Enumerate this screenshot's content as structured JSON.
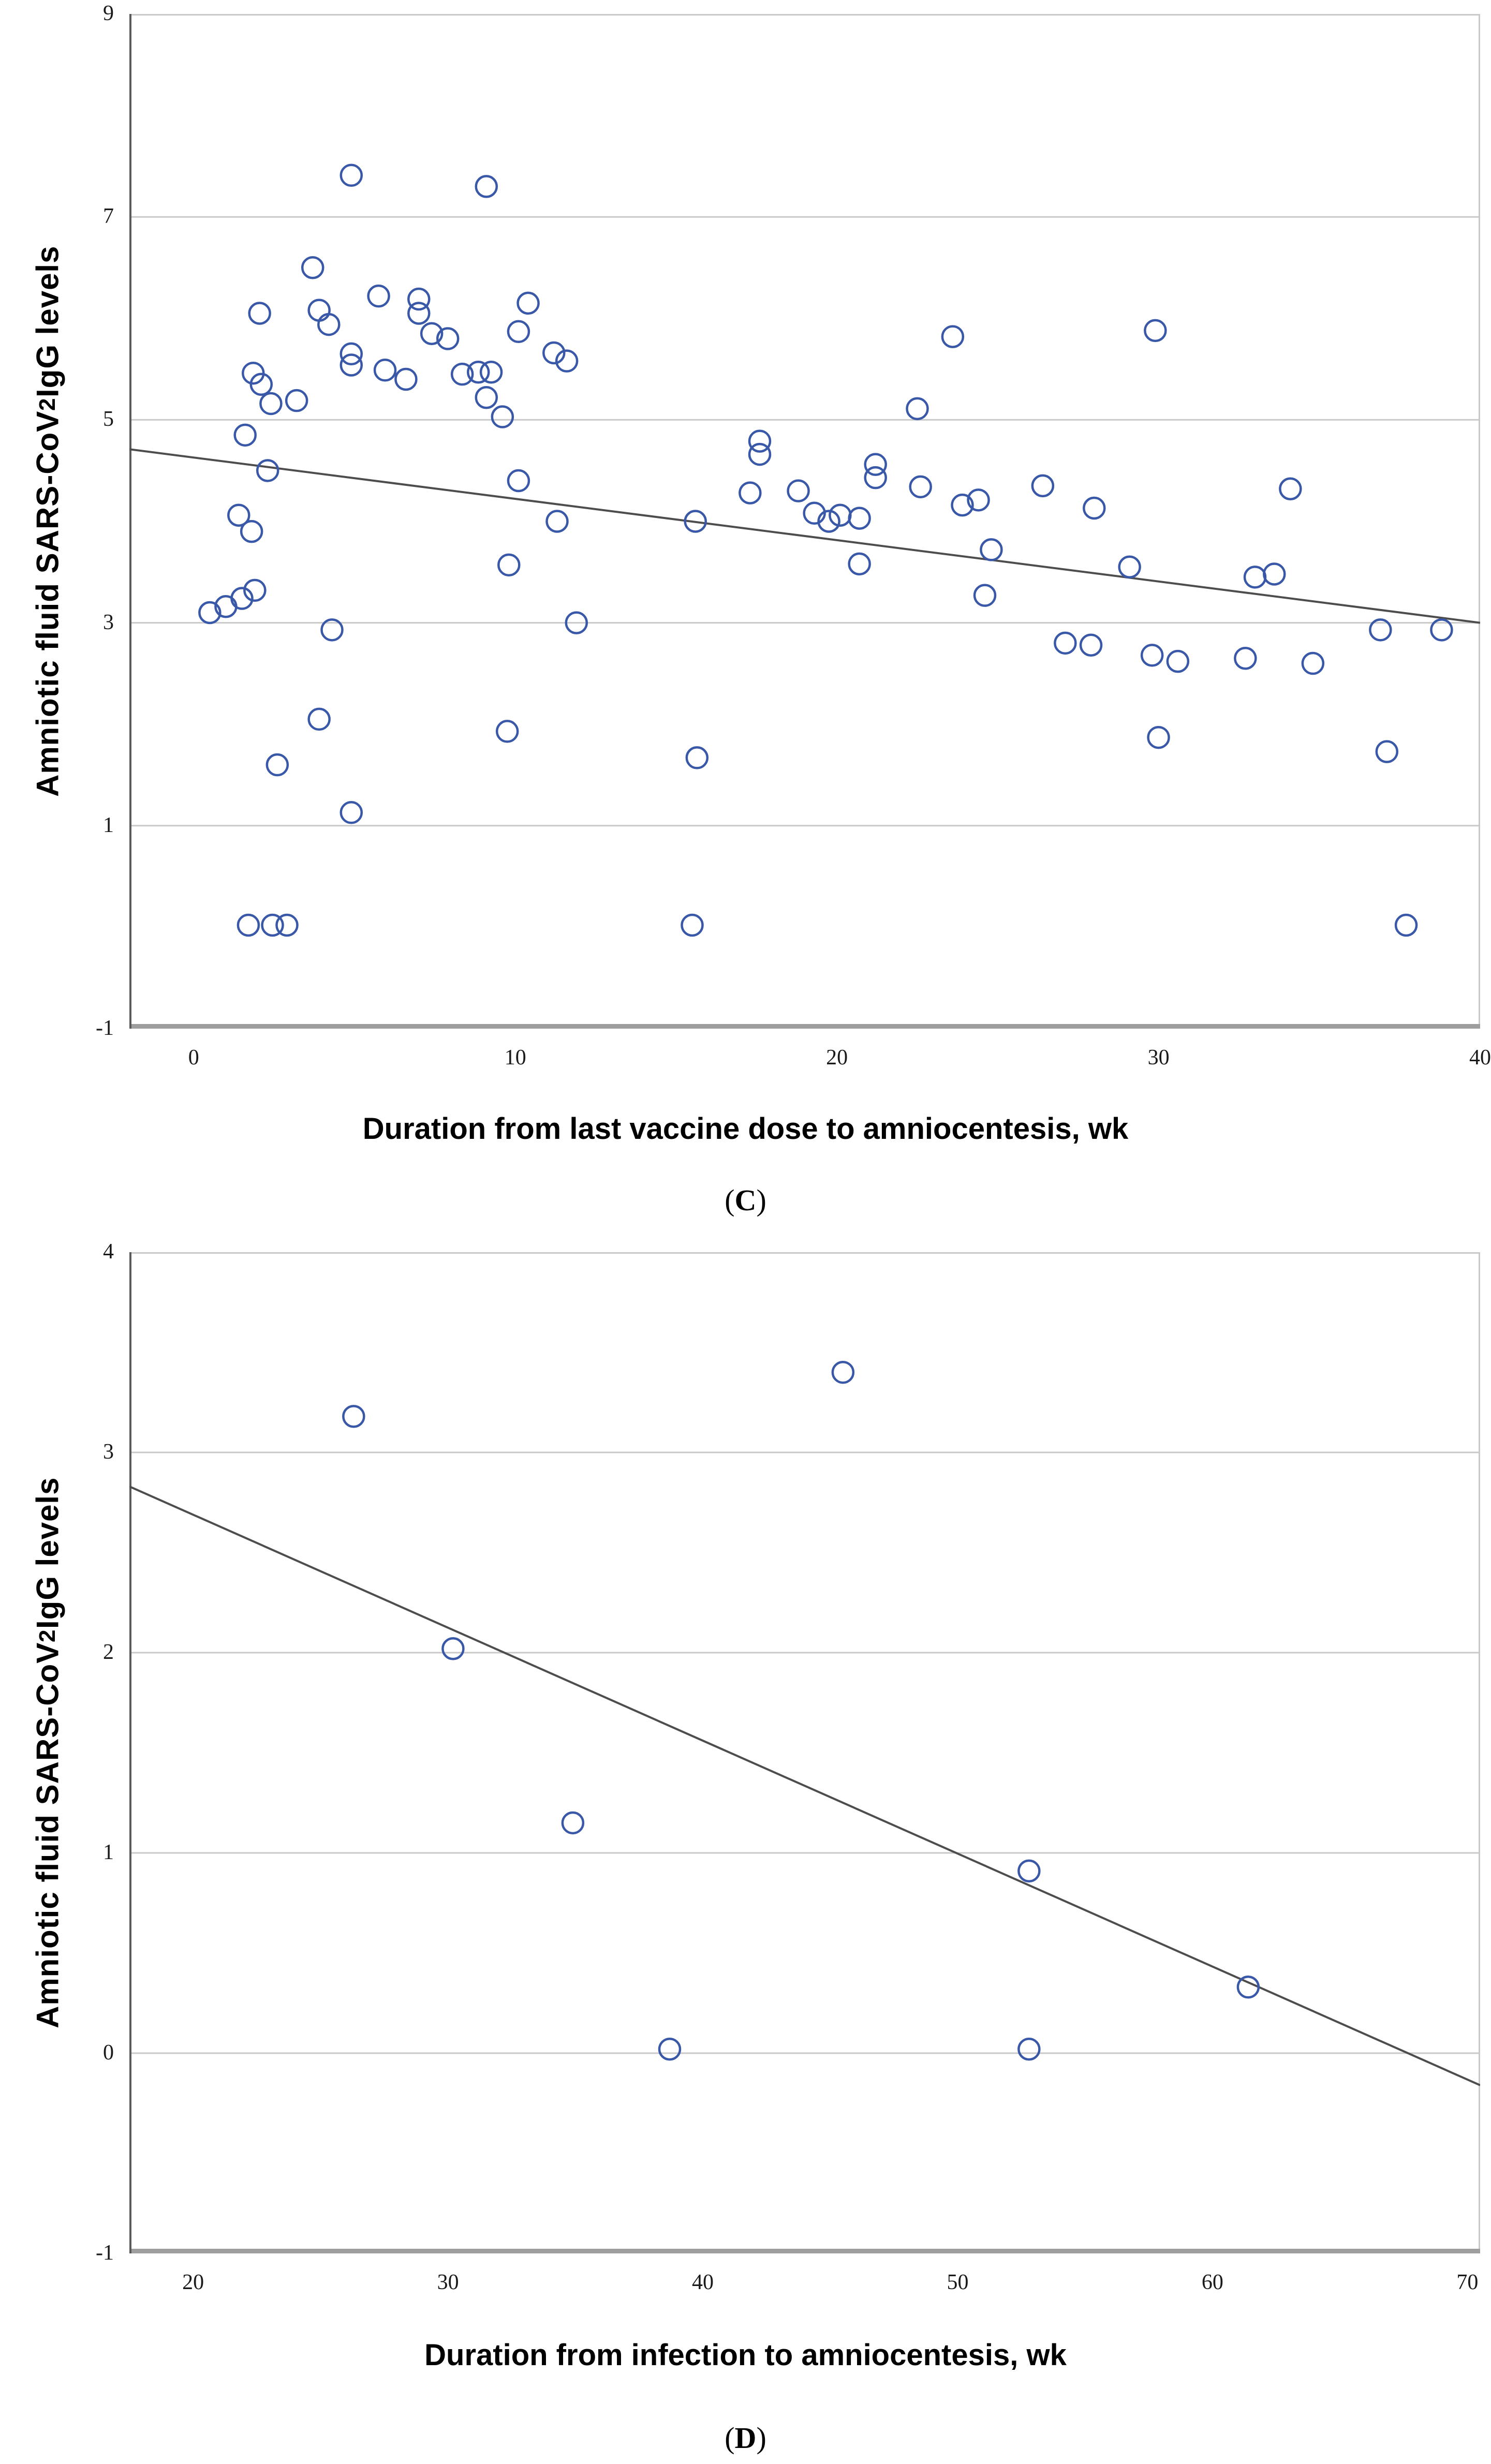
{
  "figure": {
    "background": "#ffffff",
    "point_color": "#3a58a8",
    "trend_color": "#4d4d4d",
    "gridline_color": "#c9c9c9",
    "frame_color": "#c9c9c9",
    "bottom_axis_color": "#9e9e9e",
    "left_axis_color": "#5a5a5a"
  },
  "chart_data": [
    {
      "id": "C",
      "type": "scatter",
      "title": "",
      "xlabel": "Duration from last vaccine dose to amniocentesis, wk",
      "ylabel_main": "Amniotic fluid SARS-CoV",
      "ylabel_sub": "2",
      "ylabel_rest": " IgG levels",
      "caption_open": "(",
      "caption_letter": "C",
      "caption_close": ")",
      "xlim": [
        -2,
        40
      ],
      "ylim": [
        -1,
        9
      ],
      "xticks": [
        0,
        10,
        20,
        30,
        40
      ],
      "yticks": [
        9,
        7,
        5,
        3,
        1,
        -1
      ],
      "grid_y": [
        7,
        5,
        3,
        1
      ],
      "legend": "none",
      "trend": {
        "x1": -2,
        "y1": 4.71,
        "x2": 40,
        "y2": 3.0
      },
      "points": [
        [
          1.7,
          0.02
        ],
        [
          2.45,
          0.02
        ],
        [
          2.9,
          0.02
        ],
        [
          15.5,
          0.02
        ],
        [
          37.7,
          0.02
        ],
        [
          2.6,
          1.6
        ],
        [
          3.9,
          2.05
        ],
        [
          4.9,
          1.13
        ],
        [
          9.75,
          1.93
        ],
        [
          15.65,
          1.67
        ],
        [
          30.0,
          1.87
        ],
        [
          37.1,
          1.73
        ],
        [
          0.5,
          3.1
        ],
        [
          1.0,
          3.16
        ],
        [
          1.5,
          3.24
        ],
        [
          1.9,
          3.32
        ],
        [
          4.3,
          2.93
        ],
        [
          9.8,
          3.57
        ],
        [
          11.9,
          3.0
        ],
        [
          27.1,
          2.8
        ],
        [
          27.9,
          2.78
        ],
        [
          29.8,
          2.68
        ],
        [
          30.6,
          2.62
        ],
        [
          32.7,
          2.65
        ],
        [
          34.8,
          2.6
        ],
        [
          36.9,
          2.93
        ],
        [
          38.8,
          2.93
        ],
        [
          20.7,
          3.58
        ],
        [
          24.8,
          3.72
        ],
        [
          24.6,
          3.27
        ],
        [
          29.1,
          3.55
        ],
        [
          33.0,
          3.45
        ],
        [
          33.6,
          3.48
        ],
        [
          1.4,
          4.06
        ],
        [
          1.8,
          3.9
        ],
        [
          2.3,
          4.5
        ],
        [
          10.1,
          4.4
        ],
        [
          11.3,
          4.0
        ],
        [
          15.6,
          4.0
        ],
        [
          17.3,
          4.28
        ],
        [
          18.8,
          4.3
        ],
        [
          19.3,
          4.08
        ],
        [
          19.75,
          4.0
        ],
        [
          20.1,
          4.06
        ],
        [
          20.7,
          4.03
        ],
        [
          21.2,
          4.56
        ],
        [
          21.2,
          4.43
        ],
        [
          22.6,
          4.34
        ],
        [
          23.9,
          4.16
        ],
        [
          24.4,
          4.21
        ],
        [
          26.4,
          4.35
        ],
        [
          28.0,
          4.13
        ],
        [
          34.1,
          4.32
        ],
        [
          1.6,
          4.85
        ],
        [
          2.4,
          5.16
        ],
        [
          3.2,
          5.19
        ],
        [
          9.1,
          5.22
        ],
        [
          9.6,
          5.03
        ],
        [
          17.6,
          4.79
        ],
        [
          17.6,
          4.66
        ],
        [
          22.5,
          5.11
        ],
        [
          1.85,
          5.46
        ],
        [
          2.1,
          5.35
        ],
        [
          4.9,
          5.65
        ],
        [
          4.9,
          5.54
        ],
        [
          5.95,
          5.49
        ],
        [
          6.6,
          5.4
        ],
        [
          8.35,
          5.45
        ],
        [
          8.85,
          5.47
        ],
        [
          9.25,
          5.47
        ],
        [
          11.2,
          5.66
        ],
        [
          11.6,
          5.58
        ],
        [
          2.05,
          6.05
        ],
        [
          3.9,
          6.08
        ],
        [
          4.2,
          5.94
        ],
        [
          5.75,
          6.22
        ],
        [
          7.0,
          6.19
        ],
        [
          7.0,
          6.05
        ],
        [
          7.4,
          5.85
        ],
        [
          7.9,
          5.8
        ],
        [
          10.1,
          5.87
        ],
        [
          10.4,
          6.15
        ],
        [
          23.6,
          5.82
        ],
        [
          29.9,
          5.88
        ],
        [
          3.7,
          6.5
        ],
        [
          4.9,
          7.41
        ],
        [
          9.1,
          7.3
        ]
      ]
    },
    {
      "id": "D",
      "type": "scatter",
      "title": "",
      "xlabel": "Duration from infection to amniocentesis, wk",
      "ylabel_main": "Amniotic fluid SARS-CoV",
      "ylabel_sub": "2",
      "ylabel_rest": " IgG levels",
      "caption_open": "(",
      "caption_letter": "D",
      "caption_close": ")",
      "xlim": [
        17.5,
        70.5
      ],
      "ylim": [
        -1,
        4
      ],
      "xticks": [
        20,
        30,
        40,
        50,
        60,
        70
      ],
      "yticks": [
        4,
        3,
        2,
        1,
        0,
        -1
      ],
      "grid_y": [
        3,
        2,
        1,
        0
      ],
      "legend": "none",
      "trend": {
        "x1": 17.5,
        "y1": 2.83,
        "x2": 70.5,
        "y2": -0.16
      },
      "points": [
        [
          26.3,
          3.18
        ],
        [
          30.2,
          2.02
        ],
        [
          34.9,
          1.15
        ],
        [
          38.7,
          0.02
        ],
        [
          45.5,
          3.4
        ],
        [
          52.8,
          0.91
        ],
        [
          52.8,
          0.02
        ],
        [
          61.4,
          0.33
        ]
      ]
    }
  ]
}
